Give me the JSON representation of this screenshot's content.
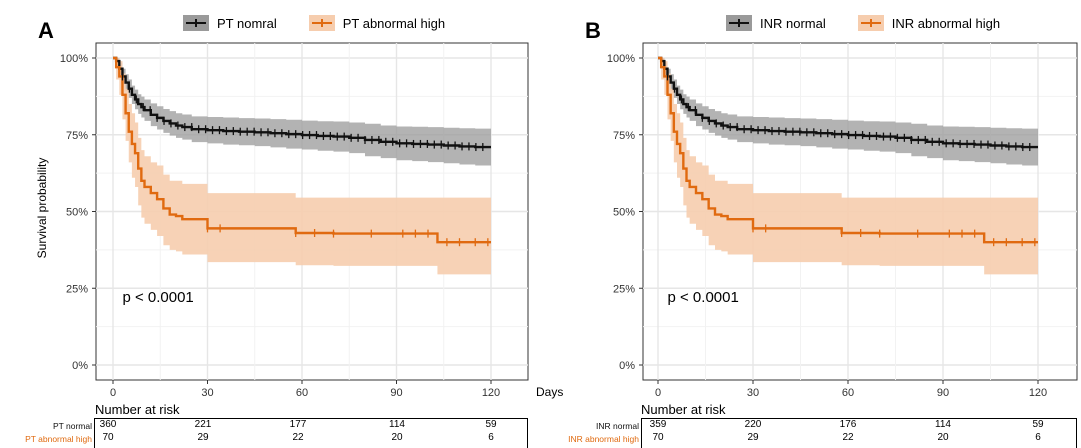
{
  "colors": {
    "normal": "#111111",
    "normal_band": "#9a9a9a",
    "abnormal": "#E06A10",
    "abnormal_band": "#F6CDAE",
    "grid": "#e6e6e6"
  },
  "shared_axis": {
    "ylabel": "Survival probability",
    "x_unit": "Days",
    "risk_title": "Number at risk"
  },
  "panels": {
    "a": {
      "letter": "A",
      "legend": [
        "PT nomral",
        "PT abnormal high"
      ],
      "pvalue": "p < 0.0001",
      "risk": {
        "normal_label": "PT normal",
        "abnormal_label": "PT abnormal high",
        "normal": [
          "360",
          "221",
          "177",
          "114",
          "59"
        ],
        "abnormal": [
          "70",
          "29",
          "22",
          "20",
          "6"
        ]
      }
    },
    "b": {
      "letter": "B",
      "legend": [
        "INR normal",
        "INR abnormal high"
      ],
      "pvalue": "p < 0.0001",
      "risk": {
        "normal_label": "INR normal",
        "abnormal_label": "INR abnormal high",
        "normal": [
          "359",
          "220",
          "176",
          "114",
          "59"
        ],
        "abnormal": [
          "70",
          "29",
          "22",
          "20",
          "6"
        ]
      }
    }
  },
  "chart_data": [
    {
      "type": "line",
      "panel": "A",
      "xlabel": "Days",
      "ylabel": "Survival probability",
      "xlim": [
        0,
        120
      ],
      "ylim": [
        0,
        1
      ],
      "x_ticks": [
        "0",
        "30",
        "60",
        "90",
        "120"
      ],
      "y_ticks": [
        "0%",
        "25%",
        "50%",
        "75%",
        "100%"
      ],
      "legend_position": "top",
      "grid": true,
      "series": [
        {
          "name": "PT nomral",
          "color": "#111111",
          "step_x": [
            0,
            1,
            2,
            3,
            4,
            5,
            6,
            7,
            8,
            9,
            10,
            12,
            14,
            16,
            18,
            20,
            22,
            25,
            30,
            35,
            40,
            45,
            50,
            55,
            60,
            65,
            70,
            75,
            80,
            85,
            90,
            95,
            100,
            105,
            110,
            115,
            120
          ],
          "step_y": [
            1.0,
            0.99,
            0.965,
            0.94,
            0.92,
            0.9,
            0.88,
            0.865,
            0.85,
            0.84,
            0.83,
            0.815,
            0.805,
            0.795,
            0.787,
            0.78,
            0.775,
            0.768,
            0.765,
            0.762,
            0.76,
            0.758,
            0.755,
            0.752,
            0.749,
            0.746,
            0.744,
            0.74,
            0.733,
            0.727,
            0.722,
            0.72,
            0.718,
            0.715,
            0.712,
            0.71,
            0.71
          ],
          "ci_lower": [
            1.0,
            0.975,
            0.945,
            0.915,
            0.893,
            0.87,
            0.85,
            0.833,
            0.818,
            0.806,
            0.795,
            0.778,
            0.767,
            0.756,
            0.747,
            0.74,
            0.734,
            0.726,
            0.722,
            0.718,
            0.716,
            0.713,
            0.709,
            0.705,
            0.702,
            0.698,
            0.695,
            0.69,
            0.68,
            0.674,
            0.667,
            0.664,
            0.661,
            0.657,
            0.653,
            0.65,
            0.65
          ],
          "ci_upper": [
            1.0,
            1.0,
            0.985,
            0.965,
            0.947,
            0.93,
            0.91,
            0.897,
            0.882,
            0.874,
            0.865,
            0.852,
            0.843,
            0.834,
            0.827,
            0.82,
            0.816,
            0.81,
            0.808,
            0.806,
            0.804,
            0.803,
            0.801,
            0.799,
            0.796,
            0.794,
            0.793,
            0.79,
            0.786,
            0.78,
            0.777,
            0.776,
            0.775,
            0.773,
            0.771,
            0.77,
            0.77
          ]
        },
        {
          "name": "PT abnormal high",
          "color": "#E06A10",
          "step_x": [
            0,
            1,
            2,
            3,
            4,
            5,
            6,
            7,
            8,
            9,
            10,
            12,
            14,
            16,
            18,
            20,
            22,
            30,
            58,
            65,
            70,
            100,
            103,
            105,
            120
          ],
          "step_y": [
            1.0,
            0.97,
            0.94,
            0.88,
            0.82,
            0.76,
            0.72,
            0.69,
            0.64,
            0.6,
            0.58,
            0.56,
            0.54,
            0.51,
            0.49,
            0.485,
            0.475,
            0.445,
            0.43,
            0.43,
            0.428,
            0.428,
            0.4,
            0.4,
            0.4
          ],
          "ci_lower": [
            1.0,
            0.93,
            0.88,
            0.8,
            0.73,
            0.66,
            0.61,
            0.58,
            0.52,
            0.48,
            0.46,
            0.44,
            0.42,
            0.39,
            0.375,
            0.37,
            0.36,
            0.335,
            0.325,
            0.325,
            0.323,
            0.323,
            0.295,
            0.295,
            0.295
          ],
          "ci_upper": [
            1.0,
            1.0,
            0.99,
            0.95,
            0.9,
            0.85,
            0.82,
            0.79,
            0.74,
            0.7,
            0.68,
            0.66,
            0.65,
            0.62,
            0.6,
            0.6,
            0.59,
            0.56,
            0.545,
            0.545,
            0.545,
            0.545,
            0.545,
            0.545,
            0.545
          ]
        }
      ]
    },
    {
      "type": "line",
      "panel": "B",
      "xlabel": "Days",
      "ylabel": "",
      "xlim": [
        0,
        120
      ],
      "ylim": [
        0,
        1
      ],
      "x_ticks": [
        "0",
        "30",
        "60",
        "90",
        "120"
      ],
      "y_ticks": [
        "0%",
        "25%",
        "50%",
        "75%",
        "100%"
      ],
      "legend_position": "top",
      "grid": true,
      "series": [
        {
          "name": "INR normal",
          "color": "#111111",
          "step_x": [
            0,
            1,
            2,
            3,
            4,
            5,
            6,
            7,
            8,
            9,
            10,
            12,
            14,
            16,
            18,
            20,
            22,
            25,
            30,
            35,
            40,
            45,
            50,
            55,
            60,
            65,
            70,
            75,
            80,
            85,
            90,
            95,
            100,
            105,
            110,
            115,
            120
          ],
          "step_y": [
            1.0,
            0.99,
            0.965,
            0.94,
            0.92,
            0.9,
            0.88,
            0.865,
            0.85,
            0.84,
            0.83,
            0.815,
            0.805,
            0.795,
            0.787,
            0.78,
            0.775,
            0.768,
            0.765,
            0.762,
            0.76,
            0.758,
            0.755,
            0.752,
            0.749,
            0.746,
            0.744,
            0.74,
            0.733,
            0.727,
            0.722,
            0.72,
            0.718,
            0.715,
            0.712,
            0.71,
            0.71
          ],
          "ci_lower": [
            1.0,
            0.975,
            0.945,
            0.915,
            0.893,
            0.87,
            0.85,
            0.833,
            0.818,
            0.806,
            0.795,
            0.778,
            0.767,
            0.756,
            0.747,
            0.74,
            0.734,
            0.726,
            0.722,
            0.718,
            0.716,
            0.713,
            0.709,
            0.705,
            0.702,
            0.698,
            0.695,
            0.69,
            0.68,
            0.674,
            0.667,
            0.664,
            0.661,
            0.657,
            0.653,
            0.65,
            0.65
          ],
          "ci_upper": [
            1.0,
            1.0,
            0.985,
            0.965,
            0.947,
            0.93,
            0.91,
            0.897,
            0.882,
            0.874,
            0.865,
            0.852,
            0.843,
            0.834,
            0.827,
            0.82,
            0.816,
            0.81,
            0.808,
            0.806,
            0.804,
            0.803,
            0.801,
            0.799,
            0.796,
            0.794,
            0.793,
            0.79,
            0.786,
            0.78,
            0.777,
            0.776,
            0.775,
            0.773,
            0.771,
            0.77,
            0.77
          ]
        },
        {
          "name": "INR abnormal high",
          "color": "#E06A10",
          "step_x": [
            0,
            1,
            2,
            3,
            4,
            5,
            6,
            7,
            8,
            9,
            10,
            12,
            14,
            16,
            18,
            20,
            22,
            30,
            58,
            65,
            70,
            100,
            103,
            105,
            120
          ],
          "step_y": [
            1.0,
            0.97,
            0.94,
            0.88,
            0.82,
            0.76,
            0.72,
            0.69,
            0.64,
            0.6,
            0.58,
            0.56,
            0.54,
            0.51,
            0.49,
            0.485,
            0.475,
            0.445,
            0.43,
            0.43,
            0.428,
            0.428,
            0.4,
            0.4,
            0.4
          ],
          "ci_lower": [
            1.0,
            0.93,
            0.88,
            0.8,
            0.73,
            0.66,
            0.61,
            0.58,
            0.52,
            0.48,
            0.46,
            0.44,
            0.42,
            0.39,
            0.375,
            0.37,
            0.36,
            0.335,
            0.325,
            0.325,
            0.323,
            0.323,
            0.295,
            0.295,
            0.295
          ],
          "ci_upper": [
            1.0,
            1.0,
            0.99,
            0.95,
            0.9,
            0.85,
            0.82,
            0.79,
            0.74,
            0.7,
            0.68,
            0.66,
            0.65,
            0.62,
            0.6,
            0.6,
            0.59,
            0.56,
            0.545,
            0.545,
            0.545,
            0.545,
            0.545,
            0.545,
            0.545
          ]
        }
      ]
    }
  ]
}
